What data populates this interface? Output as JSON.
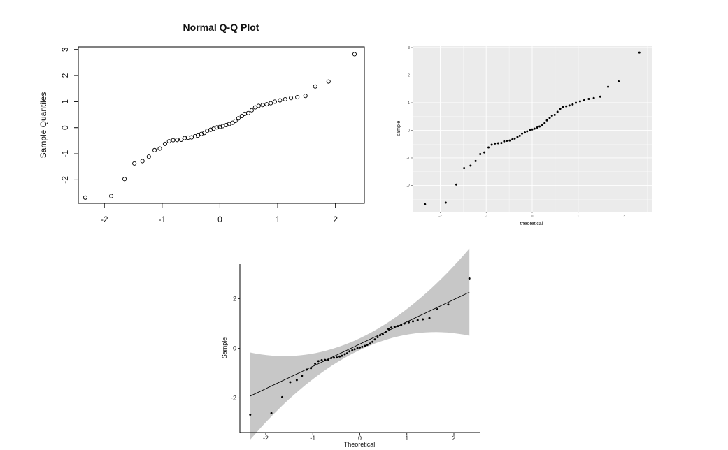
{
  "chart_data": [
    {
      "type": "scatter",
      "style": "base-r",
      "title": "Normal Q-Q Plot",
      "xlabel": "",
      "ylabel": "Sample Quantiles",
      "xlim": [
        -2.45,
        2.5
      ],
      "ylim": [
        -2.9,
        3.1
      ],
      "x_ticks": [
        -2,
        -1,
        0,
        1,
        2
      ],
      "y_ticks": [
        -2,
        -1,
        0,
        1,
        2,
        3
      ],
      "tick_labels_x": [
        "-2",
        "-1",
        "0",
        "1",
        "2"
      ],
      "tick_labels_y": [
        "-2",
        "-1",
        "0",
        "1",
        "2",
        "3"
      ],
      "marker": "open-circle",
      "grid": false
    },
    {
      "type": "scatter",
      "style": "ggplot-grey",
      "title": "",
      "xlabel": "theoretical",
      "ylabel": "sample",
      "xlim": [
        -2.6,
        2.6
      ],
      "ylim": [
        -2.95,
        3.05
      ],
      "x_ticks": [
        -2,
        -1,
        0,
        1,
        2
      ],
      "y_ticks": [
        -2,
        -1,
        0,
        1,
        2,
        3
      ],
      "tick_labels_x": [
        "-2",
        "-1",
        "0",
        "1",
        "2"
      ],
      "tick_labels_y": [
        "-2",
        "-1",
        "0",
        "1",
        "2",
        "3"
      ],
      "marker": "filled-dot",
      "grid": true
    },
    {
      "type": "scatter",
      "style": "ggpubr",
      "title": "",
      "xlabel": "Theoretical",
      "ylabel": "Sample",
      "xlim": [
        -2.55,
        2.55
      ],
      "ylim": [
        -3.4,
        3.4
      ],
      "x_ticks": [
        -2,
        -1,
        0,
        1,
        2
      ],
      "y_ticks": [
        -2,
        0,
        2
      ],
      "tick_labels_x": [
        "-2",
        "-1",
        "0",
        "1",
        "2"
      ],
      "tick_labels_y": [
        "-2",
        "0",
        "2"
      ],
      "marker": "filled-dot",
      "reference_line": {
        "intercept": 0.17,
        "slope": 0.9
      },
      "confidence_band": true,
      "grid": false
    }
  ],
  "shared_points": {
    "theoretical": [
      -2.33,
      -1.88,
      -1.65,
      -1.48,
      -1.34,
      -1.23,
      -1.13,
      -1.04,
      -0.95,
      -0.88,
      -0.81,
      -0.74,
      -0.67,
      -0.61,
      -0.55,
      -0.49,
      -0.43,
      -0.38,
      -0.32,
      -0.27,
      -0.22,
      -0.16,
      -0.11,
      -0.05,
      0.0,
      0.05,
      0.11,
      0.16,
      0.22,
      0.27,
      0.32,
      0.38,
      0.43,
      0.49,
      0.55,
      0.61,
      0.67,
      0.74,
      0.81,
      0.88,
      0.95,
      1.04,
      1.13,
      1.23,
      1.34,
      1.48,
      1.65,
      1.88,
      2.33
    ],
    "sample": [
      -2.68,
      -2.62,
      -1.97,
      -1.37,
      -1.28,
      -1.11,
      -0.86,
      -0.8,
      -0.62,
      -0.52,
      -0.48,
      -0.47,
      -0.46,
      -0.4,
      -0.38,
      -0.37,
      -0.33,
      -0.3,
      -0.24,
      -0.2,
      -0.12,
      -0.08,
      -0.04,
      0.01,
      0.03,
      0.06,
      0.1,
      0.14,
      0.19,
      0.26,
      0.36,
      0.45,
      0.53,
      0.56,
      0.67,
      0.78,
      0.84,
      0.87,
      0.9,
      0.94,
      1.0,
      1.05,
      1.09,
      1.14,
      1.17,
      1.22,
      1.58,
      1.77,
      2.82
    ]
  },
  "colors": {
    "points": "#000000",
    "panel_grey": "#ebebeb",
    "grid_major": "#ffffff",
    "band": "#bdbdbd",
    "axis": "#000000"
  }
}
